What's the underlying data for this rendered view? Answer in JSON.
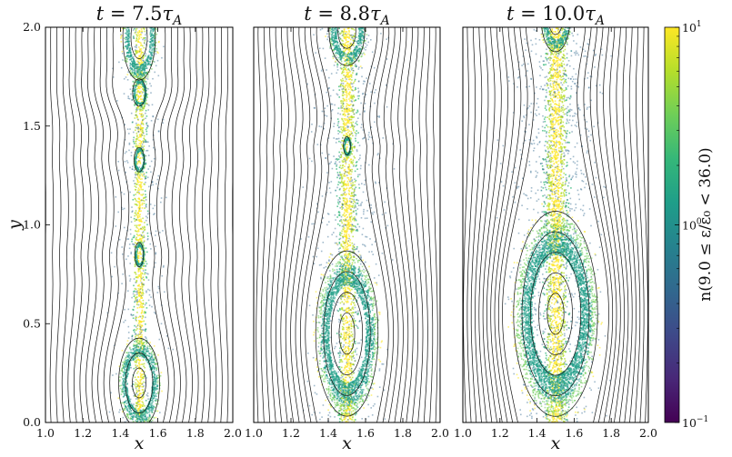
{
  "chart_data": [
    {
      "type": "heatmap",
      "title": "t = 7.5τ_A",
      "title_parts": {
        "t": "t",
        "eq": " = ",
        "val": "7.5",
        "tau": "τ",
        "sub": "A"
      },
      "xlabel": "x",
      "ylabel": "y",
      "xlim": [
        1.0,
        2.0
      ],
      "ylim": [
        0.0,
        2.0
      ],
      "x_ticks": [
        1.0,
        1.2,
        1.4,
        1.6,
        1.8,
        2.0
      ],
      "x_tick_labels": [
        "1.0",
        "1.2",
        "1.4",
        "1.6",
        "1.8",
        "2.0"
      ],
      "y_ticks": [
        0.0,
        0.5,
        1.0,
        1.5,
        2.0
      ],
      "y_tick_labels": [
        "0.0",
        "0.5",
        "1.0",
        "1.5",
        "2.0"
      ],
      "sheet_width": 0.055,
      "islands": [
        {
          "x": 1.5,
          "y": 0.2,
          "rx": 0.12,
          "ry": 0.25,
          "n": 3
        },
        {
          "x": 1.5,
          "y": 1.95,
          "rx": 0.1,
          "ry": 0.25,
          "n": 2
        },
        {
          "x": 1.5,
          "y": 1.67,
          "rx": 0.045,
          "ry": 0.09,
          "n": 1
        },
        {
          "x": 1.5,
          "y": 1.33,
          "rx": 0.035,
          "ry": 0.08,
          "n": 1
        },
        {
          "x": 1.5,
          "y": 0.85,
          "rx": 0.03,
          "ry": 0.08,
          "n": 1
        }
      ]
    },
    {
      "type": "heatmap",
      "title": "t = 8.8τ_A",
      "title_parts": {
        "t": "t",
        "eq": " = ",
        "val": "8.8",
        "tau": "τ",
        "sub": "A"
      },
      "xlabel": "x",
      "xlim": [
        1.0,
        2.0
      ],
      "ylim": [
        0.0,
        2.0
      ],
      "x_ticks": [
        1.0,
        1.2,
        1.4,
        1.6,
        1.8,
        2.0
      ],
      "x_tick_labels": [
        "1.0",
        "1.2",
        "1.4",
        "1.6",
        "1.8",
        "2.0"
      ],
      "sheet_width": 0.08,
      "islands": [
        {
          "x": 1.5,
          "y": 0.45,
          "rx": 0.18,
          "ry": 0.45,
          "n": 4
        },
        {
          "x": 1.5,
          "y": 1.98,
          "rx": 0.11,
          "ry": 0.2,
          "n": 2
        },
        {
          "x": 1.5,
          "y": 1.4,
          "rx": 0.025,
          "ry": 0.06,
          "n": 1
        }
      ]
    },
    {
      "type": "heatmap",
      "title": "t = 10.0τ_A",
      "title_parts": {
        "t": "t",
        "eq": " = ",
        "val": "10.0",
        "tau": "τ",
        "sub": "A"
      },
      "xlabel": "x",
      "xlim": [
        1.0,
        2.0
      ],
      "ylim": [
        0.0,
        2.0
      ],
      "x_ticks": [
        1.0,
        1.2,
        1.4,
        1.6,
        1.8,
        2.0
      ],
      "x_tick_labels": [
        "1.0",
        "1.2",
        "1.4",
        "1.6",
        "1.8",
        "2.0"
      ],
      "sheet_width": 0.1,
      "islands": [
        {
          "x": 1.5,
          "y": 0.55,
          "rx": 0.24,
          "ry": 0.55,
          "n": 5
        },
        {
          "x": 1.5,
          "y": 2.05,
          "rx": 0.09,
          "ry": 0.2,
          "n": 2
        }
      ]
    }
  ],
  "colorbar": {
    "label": "n(9.0 ≤ ε/ε₀ < 36.0)",
    "scale": "log",
    "min_exponent": -1,
    "max_exponent": 1,
    "ticks": [
      {
        "base": "10",
        "exp": "1"
      },
      {
        "base": "10",
        "exp": "0"
      },
      {
        "base": "10",
        "exp": "−1"
      }
    ],
    "colormap": [
      "#440154",
      "#482878",
      "#3e4989",
      "#31688e",
      "#26828e",
      "#1f9e89",
      "#35b779",
      "#6ece58",
      "#b5de2b",
      "#fde725"
    ]
  }
}
